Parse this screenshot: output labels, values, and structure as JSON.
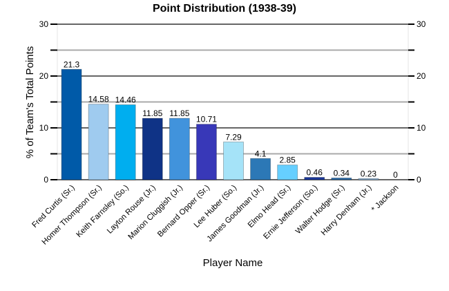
{
  "chart_data": {
    "type": "bar",
    "title": "Point Distribution (1938-39)",
    "xlabel": "Player Name",
    "ylabel": "% of Team's Total Points",
    "ylim": [
      0,
      30
    ],
    "yticks": [
      0,
      10,
      20,
      30
    ],
    "minor_ticks": [
      5,
      15,
      25
    ],
    "grid": true,
    "categories": [
      "Fred Curtis (Sr.)",
      "Homer Thompson (Sr.)",
      "Keith Farnsley (So.)",
      "Layton Rouse (Jr.)",
      "Marion Cluggish (Jr.)",
      "Bernard Opper (Sr.)",
      "Lee Huber (So.)",
      "James Goodman (Jr.)",
      "Elmo Head (Sr.)",
      "Ernie Jefferson (So.)",
      "Walter Hodge (Sr.)",
      "Harry Denham (Jr.)",
      "* Jackson"
    ],
    "values": [
      21.3,
      14.58,
      14.46,
      11.85,
      11.85,
      10.71,
      7.29,
      4.1,
      2.85,
      0.46,
      0.34,
      0.23,
      0
    ],
    "value_labels": [
      "21.3",
      "14.58",
      "14.46",
      "11.85",
      "11.85",
      "10.71",
      "7.29",
      "4.1",
      "2.85",
      "0.46",
      "0.34",
      "0.23",
      "0"
    ],
    "colors": [
      "#005aa8",
      "#9fcbef",
      "#00aeef",
      "#0f3386",
      "#4193dc",
      "#3838b8",
      "#a5e3f8",
      "#2c78b6",
      "#66cfff",
      "#1a3799",
      "#2a6aa8",
      "#8ab4da",
      "#8ab4da"
    ]
  }
}
